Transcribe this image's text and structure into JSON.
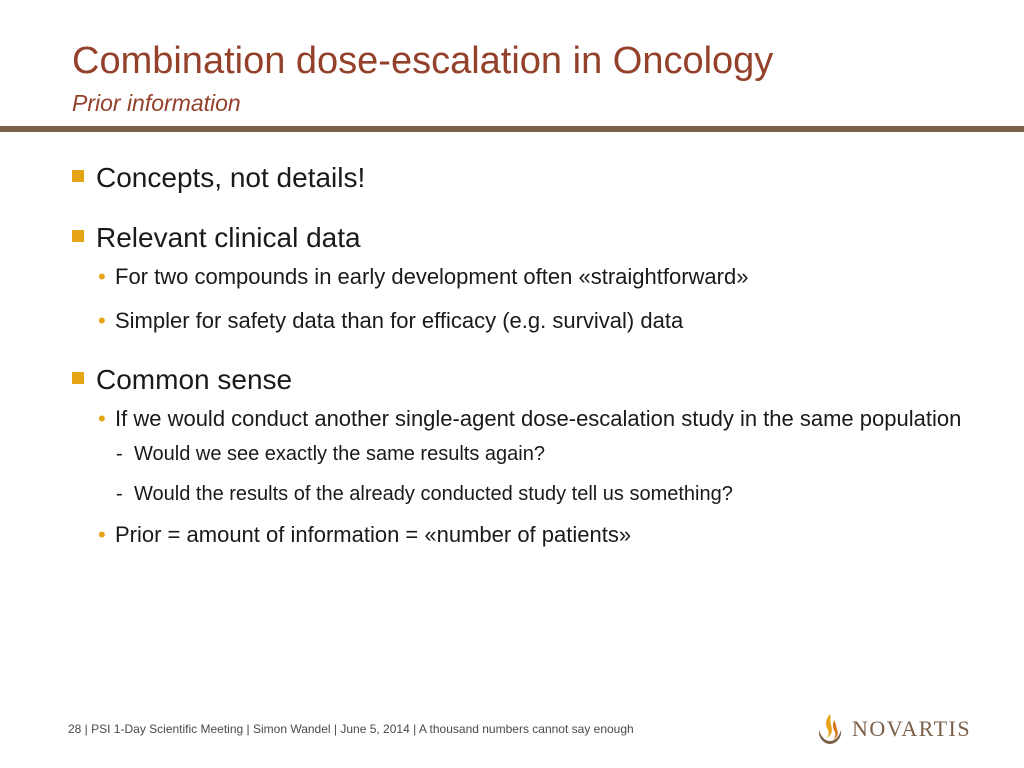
{
  "header": {
    "title": "Combination dose-escalation in Oncology",
    "subtitle": "Prior information"
  },
  "bullets": {
    "b1": "Concepts, not details!",
    "b2": "Relevant clinical data",
    "b2_sub1": "For two compounds in early development often «straightforward»",
    "b2_sub2": "Simpler for safety data than for efficacy (e.g. survival) data",
    "b3": "Common sense",
    "b3_sub1": "If we would conduct another single-agent dose-escalation study in the same population",
    "b3_sub1_d1": "Would we see exactly the same results again?",
    "b3_sub1_d2": "Would the results of the already conducted study tell us something?",
    "b3_sub2": "Prior = amount of information = «number of patients»"
  },
  "footer": {
    "text": "28  | PSI 1-Day Scientific Meeting | Simon Wandel | June 5, 2014 | A thousand numbers cannot say enough"
  },
  "logo": {
    "text": "NOVARTIS"
  },
  "colors": {
    "title": "#93412b",
    "rule": "#7b6049",
    "bullet": "#e6a417"
  }
}
